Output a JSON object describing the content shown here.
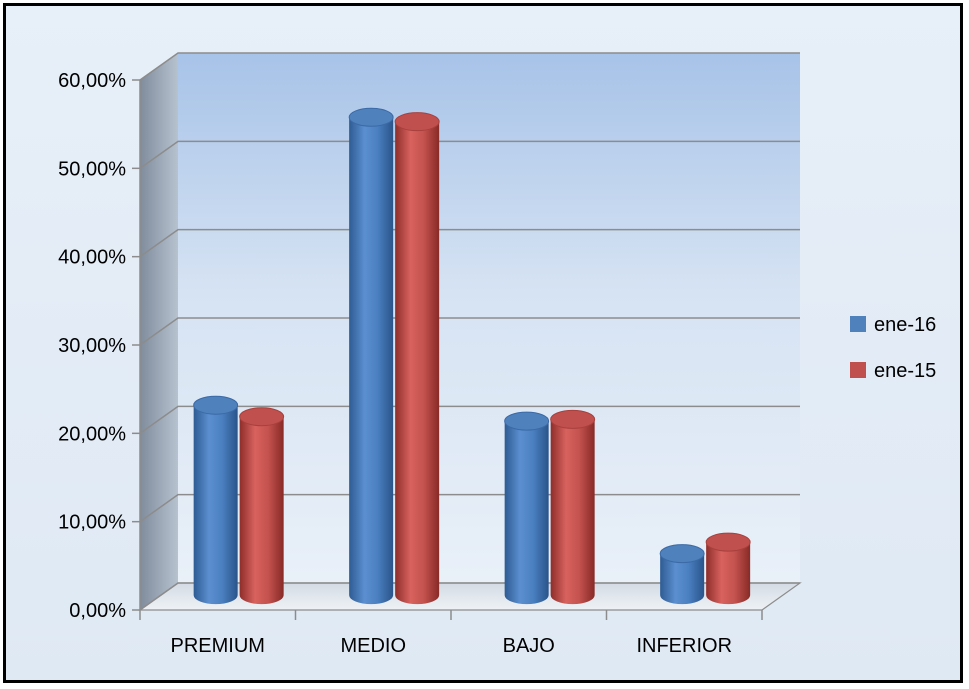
{
  "chart_data": {
    "type": "bar",
    "style": "3d-cylinder",
    "categories": [
      "PREMIUM",
      "MEDIO",
      "BAJO",
      "INFERIOR"
    ],
    "series": [
      {
        "name": "ene-16",
        "color": "#4f81bd",
        "values": [
          0.215,
          0.541,
          0.197,
          0.047
        ]
      },
      {
        "name": "ene-15",
        "color": "#c0504d",
        "values": [
          0.202,
          0.536,
          0.199,
          0.06
        ]
      }
    ],
    "y_ticks": [
      "0,00%",
      "10,00%",
      "20,00%",
      "30,00%",
      "40,00%",
      "50,00%",
      "60,00%"
    ],
    "ylim": [
      0,
      0.6
    ],
    "grid": true,
    "legend_position": "right",
    "title": "",
    "xlabel": "",
    "ylabel": ""
  }
}
